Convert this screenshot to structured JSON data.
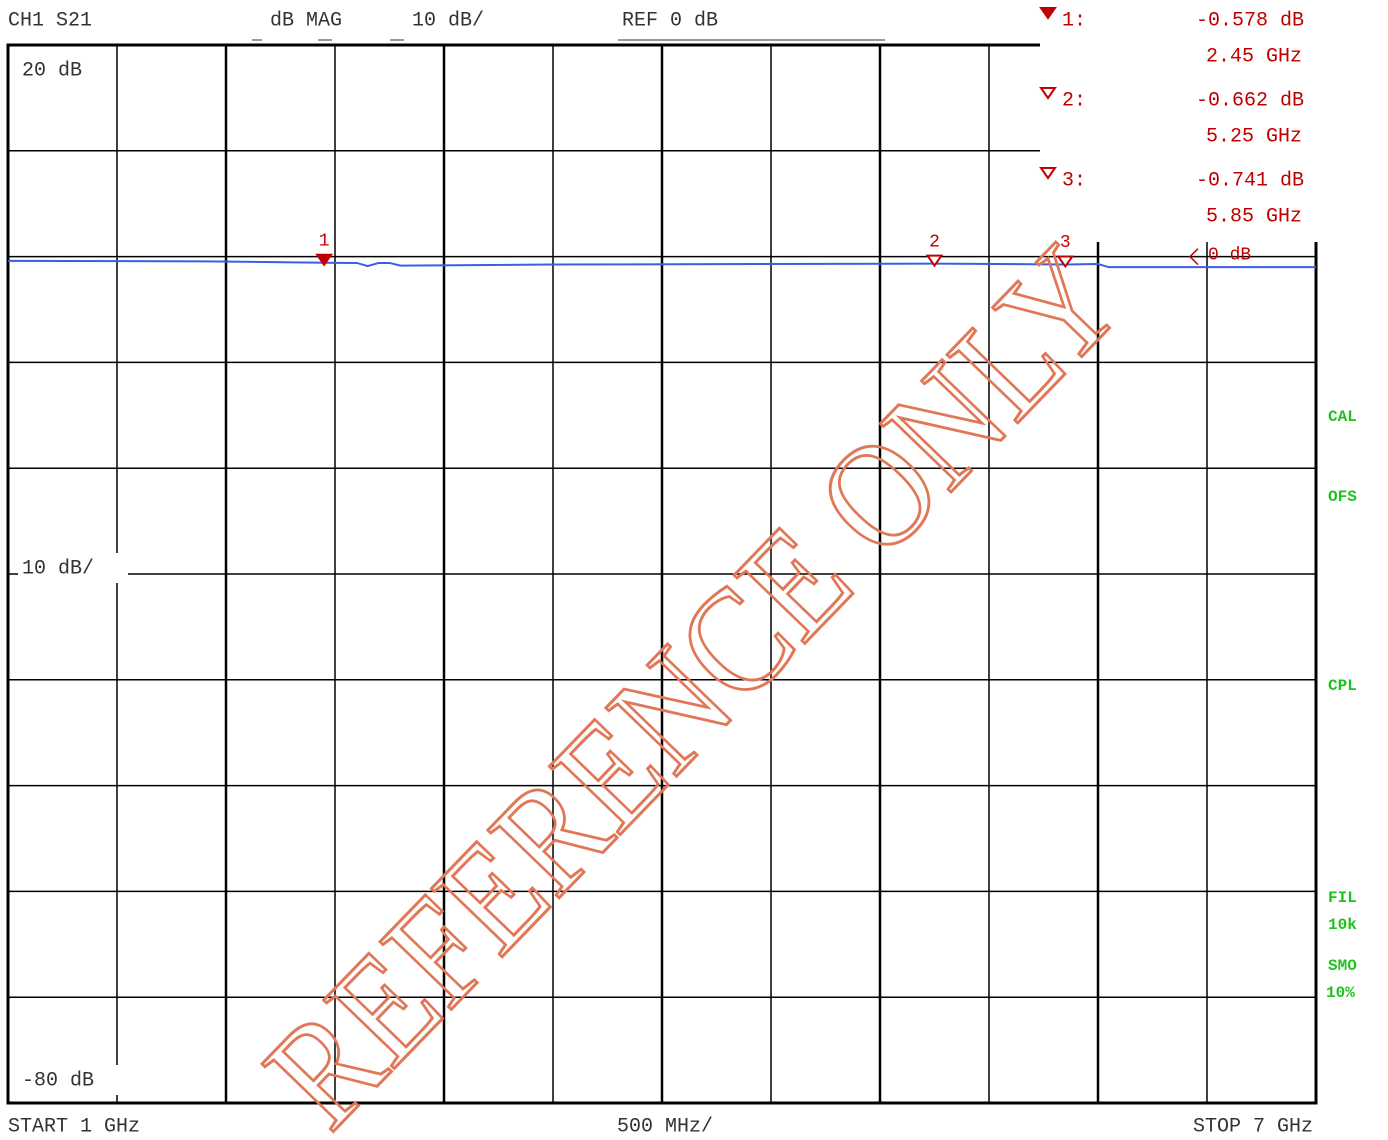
{
  "chart_data": {
    "type": "line",
    "header": {
      "channel": "CH1 S21",
      "format": "dB MAG",
      "scale": "10 dB/",
      "reference": "REF 0 dB"
    },
    "y_top_label": "20 dB",
    "y_bottom_label": "-80 dB",
    "x_start_label": "START 1 GHz",
    "x_scale_label": "500 MHz/",
    "x_stop_label": "STOP 7 GHz",
    "ref_level_label": "0 dB",
    "watermark": "REFERENCE ONLY",
    "side_labels": [
      "CAL",
      "OFS",
      "CPL",
      "FIL",
      "10k",
      "SMO",
      "10%"
    ],
    "xlim": [
      1,
      7
    ],
    "ylim": [
      -80,
      20
    ],
    "xticks": [
      1,
      1.5,
      2,
      2.5,
      3,
      3.5,
      4,
      4.5,
      5,
      5.5,
      6,
      6.5,
      7
    ],
    "yticks": [
      -80,
      -70,
      -60,
      -50,
      -40,
      -30,
      -20,
      -10,
      0,
      10,
      20
    ],
    "grid": true,
    "series": [
      {
        "name": "S21",
        "color": "#3a5ee8",
        "x": [
          1,
          1.9,
          2.45,
          2.6,
          2.65,
          2.7,
          2.75,
          2.8,
          3.5,
          5.25,
          5.85,
          6.0,
          6.05,
          7
        ],
        "values": [
          -0.4,
          -0.45,
          -0.578,
          -0.6,
          -0.9,
          -0.6,
          -0.6,
          -0.85,
          -0.75,
          -0.662,
          -0.741,
          -0.7,
          -1.0,
          -1.0
        ]
      }
    ],
    "marker_color": "#c00000",
    "markers": [
      {
        "name": "1",
        "readout": "1:",
        "x": 2.45,
        "x_label": "2.45 GHz",
        "value": -0.578,
        "value_label": "-0.578 dB"
      },
      {
        "name": "2",
        "readout": "2:",
        "x": 5.25,
        "x_label": "5.25 GHz",
        "value": -0.662,
        "value_label": "-0.662 dB"
      },
      {
        "name": "3",
        "readout": "3:",
        "x": 5.85,
        "x_label": "5.85 GHz",
        "value": -0.741,
        "value_label": "-0.741 dB"
      }
    ]
  }
}
